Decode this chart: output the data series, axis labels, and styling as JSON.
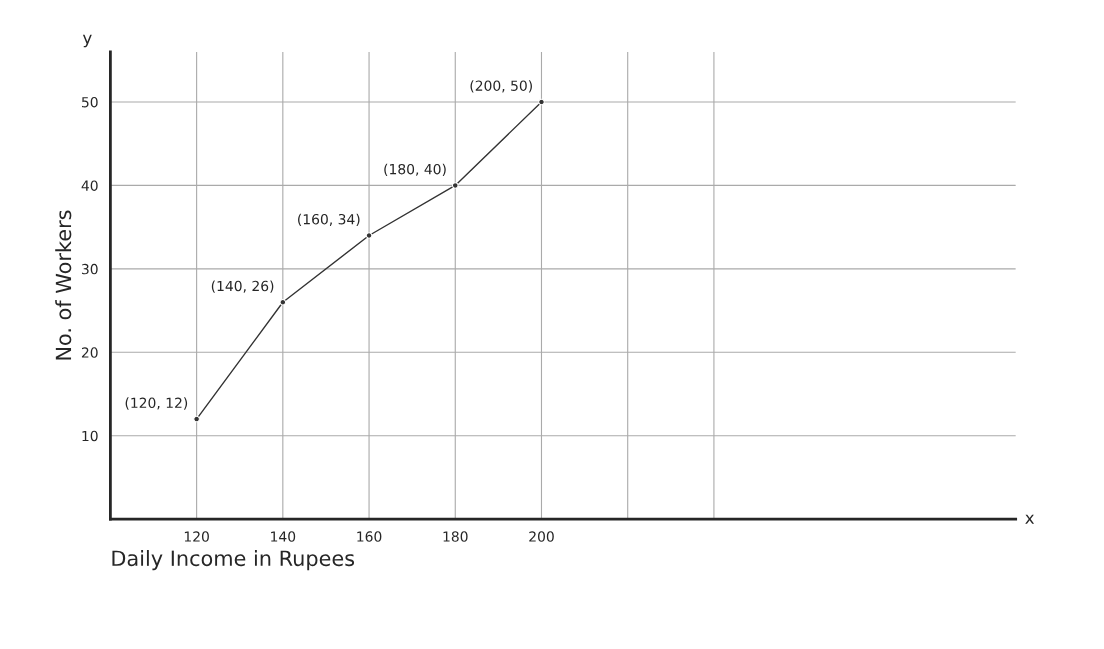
{
  "chart_data": {
    "type": "line",
    "xlabel": "Daily Income in Rupees",
    "ylabel": "No. of Workers",
    "x": [
      120,
      140,
      160,
      180,
      200
    ],
    "series": [
      {
        "color": "#333333",
        "values": [
          12,
          26,
          34,
          40,
          50
        ],
        "value_labels": [
          "(120, 12)",
          "(140, 26)",
          "(160, 34)",
          "(180, 40)",
          "(200, 50)"
        ]
      }
    ],
    "xlim": [
      100,
      310
    ],
    "ylim": [
      0,
      56
    ],
    "xticks": [
      120,
      140,
      160,
      180,
      200,
      {
        "value": 220,
        "label": null
      },
      {
        "value": 240,
        "label": null
      }
    ],
    "yticks": [
      10,
      20,
      30,
      40,
      50
    ],
    "annotations": [
      "x",
      "y"
    ],
    "grid": true,
    "marker": "circle",
    "line_style": "solid"
  }
}
